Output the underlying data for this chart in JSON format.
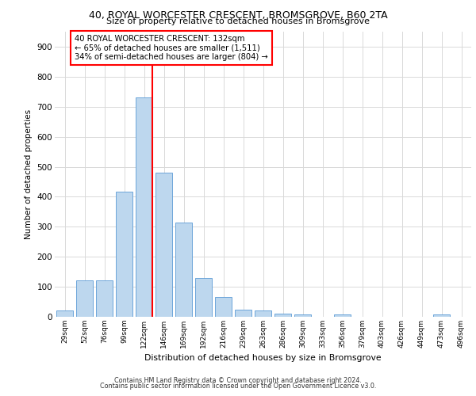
{
  "title_line1": "40, ROYAL WORCESTER CRESCENT, BROMSGROVE, B60 2TA",
  "title_line2": "Size of property relative to detached houses in Bromsgrove",
  "xlabel": "Distribution of detached houses by size in Bromsgrove",
  "ylabel": "Number of detached properties",
  "bar_color": "#bdd7ee",
  "bar_edge_color": "#5b9bd5",
  "categories": [
    "29sqm",
    "52sqm",
    "76sqm",
    "99sqm",
    "122sqm",
    "146sqm",
    "169sqm",
    "192sqm",
    "216sqm",
    "239sqm",
    "263sqm",
    "286sqm",
    "309sqm",
    "333sqm",
    "356sqm",
    "379sqm",
    "403sqm",
    "426sqm",
    "449sqm",
    "473sqm",
    "496sqm"
  ],
  "values": [
    20,
    122,
    122,
    418,
    730,
    480,
    315,
    130,
    65,
    25,
    20,
    10,
    8,
    0,
    8,
    0,
    0,
    0,
    0,
    8,
    0
  ],
  "ylim": [
    0,
    950
  ],
  "yticks": [
    0,
    100,
    200,
    300,
    400,
    500,
    600,
    700,
    800,
    900
  ],
  "annotation_text": "40 ROYAL WORCESTER CRESCENT: 132sqm\n← 65% of detached houses are smaller (1,511)\n34% of semi-detached houses are larger (804) →",
  "annotation_box_color": "white",
  "annotation_box_edge_color": "red",
  "red_line_color": "red",
  "grid_color": "#d9d9d9",
  "bg_color": "white",
  "footer_line1": "Contains HM Land Registry data © Crown copyright and database right 2024.",
  "footer_line2": "Contains public sector information licensed under the Open Government Licence v3.0."
}
